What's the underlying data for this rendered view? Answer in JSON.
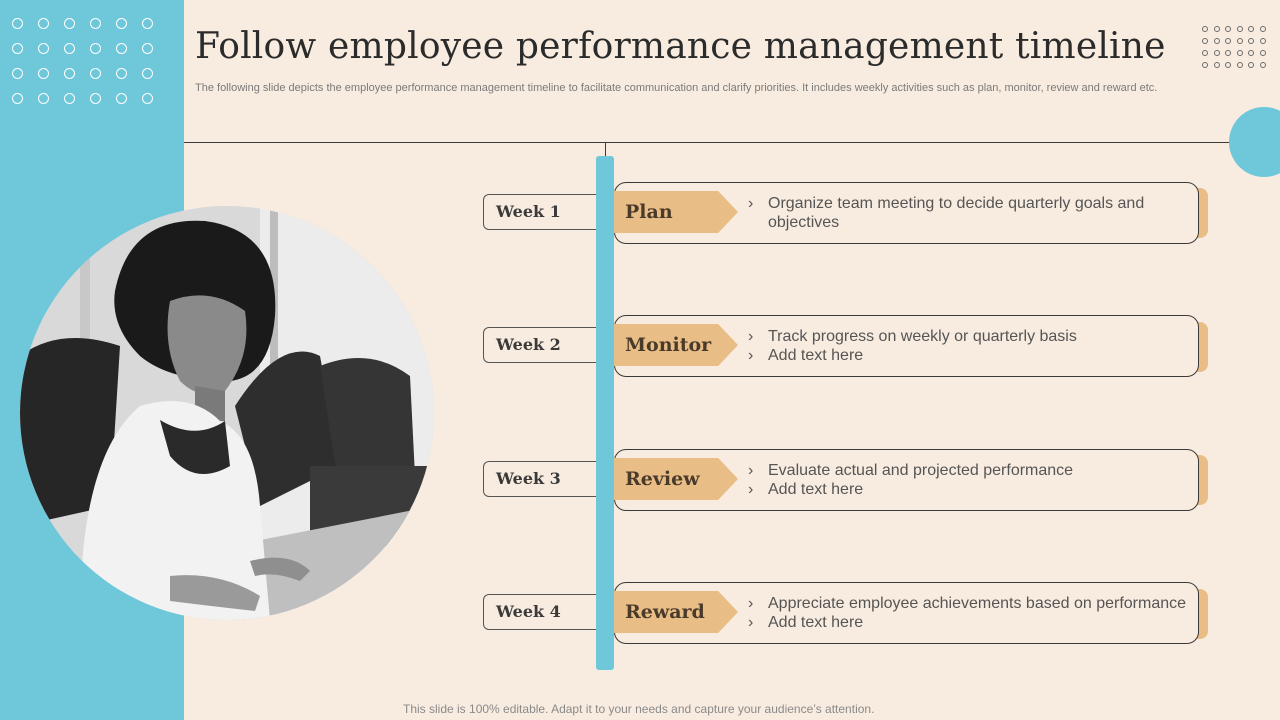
{
  "title": "Follow employee performance management timeline",
  "subtitle": "The following slide depicts the employee performance management timeline to facilitate communication and clarify priorities. It includes weekly activities such as plan, monitor, review and reward etc.",
  "footer": "This slide is 100% editable. Adapt it to your needs and capture your audience’s attention.",
  "colors": {
    "accent_blue": "#6fc8da",
    "tag_tan": "#e9bd86",
    "background": "#f8ece0"
  },
  "photo": {
    "icon": "person-at-desk-photo"
  },
  "timeline": [
    {
      "week": "Week 1",
      "phase": "Plan",
      "bullets": [
        "Organize team meeting to decide quarterly goals and objectives"
      ]
    },
    {
      "week": "Week 2",
      "phase": "Monitor",
      "bullets": [
        "Track progress on weekly or quarterly basis",
        "Add text here"
      ]
    },
    {
      "week": "Week 3",
      "phase": "Review",
      "bullets": [
        "Evaluate actual and projected performance",
        "Add text here"
      ]
    },
    {
      "week": "Week 4",
      "phase": "Reward",
      "bullets": [
        "Appreciate employee achievements based on performance",
        "Add text here"
      ]
    }
  ]
}
